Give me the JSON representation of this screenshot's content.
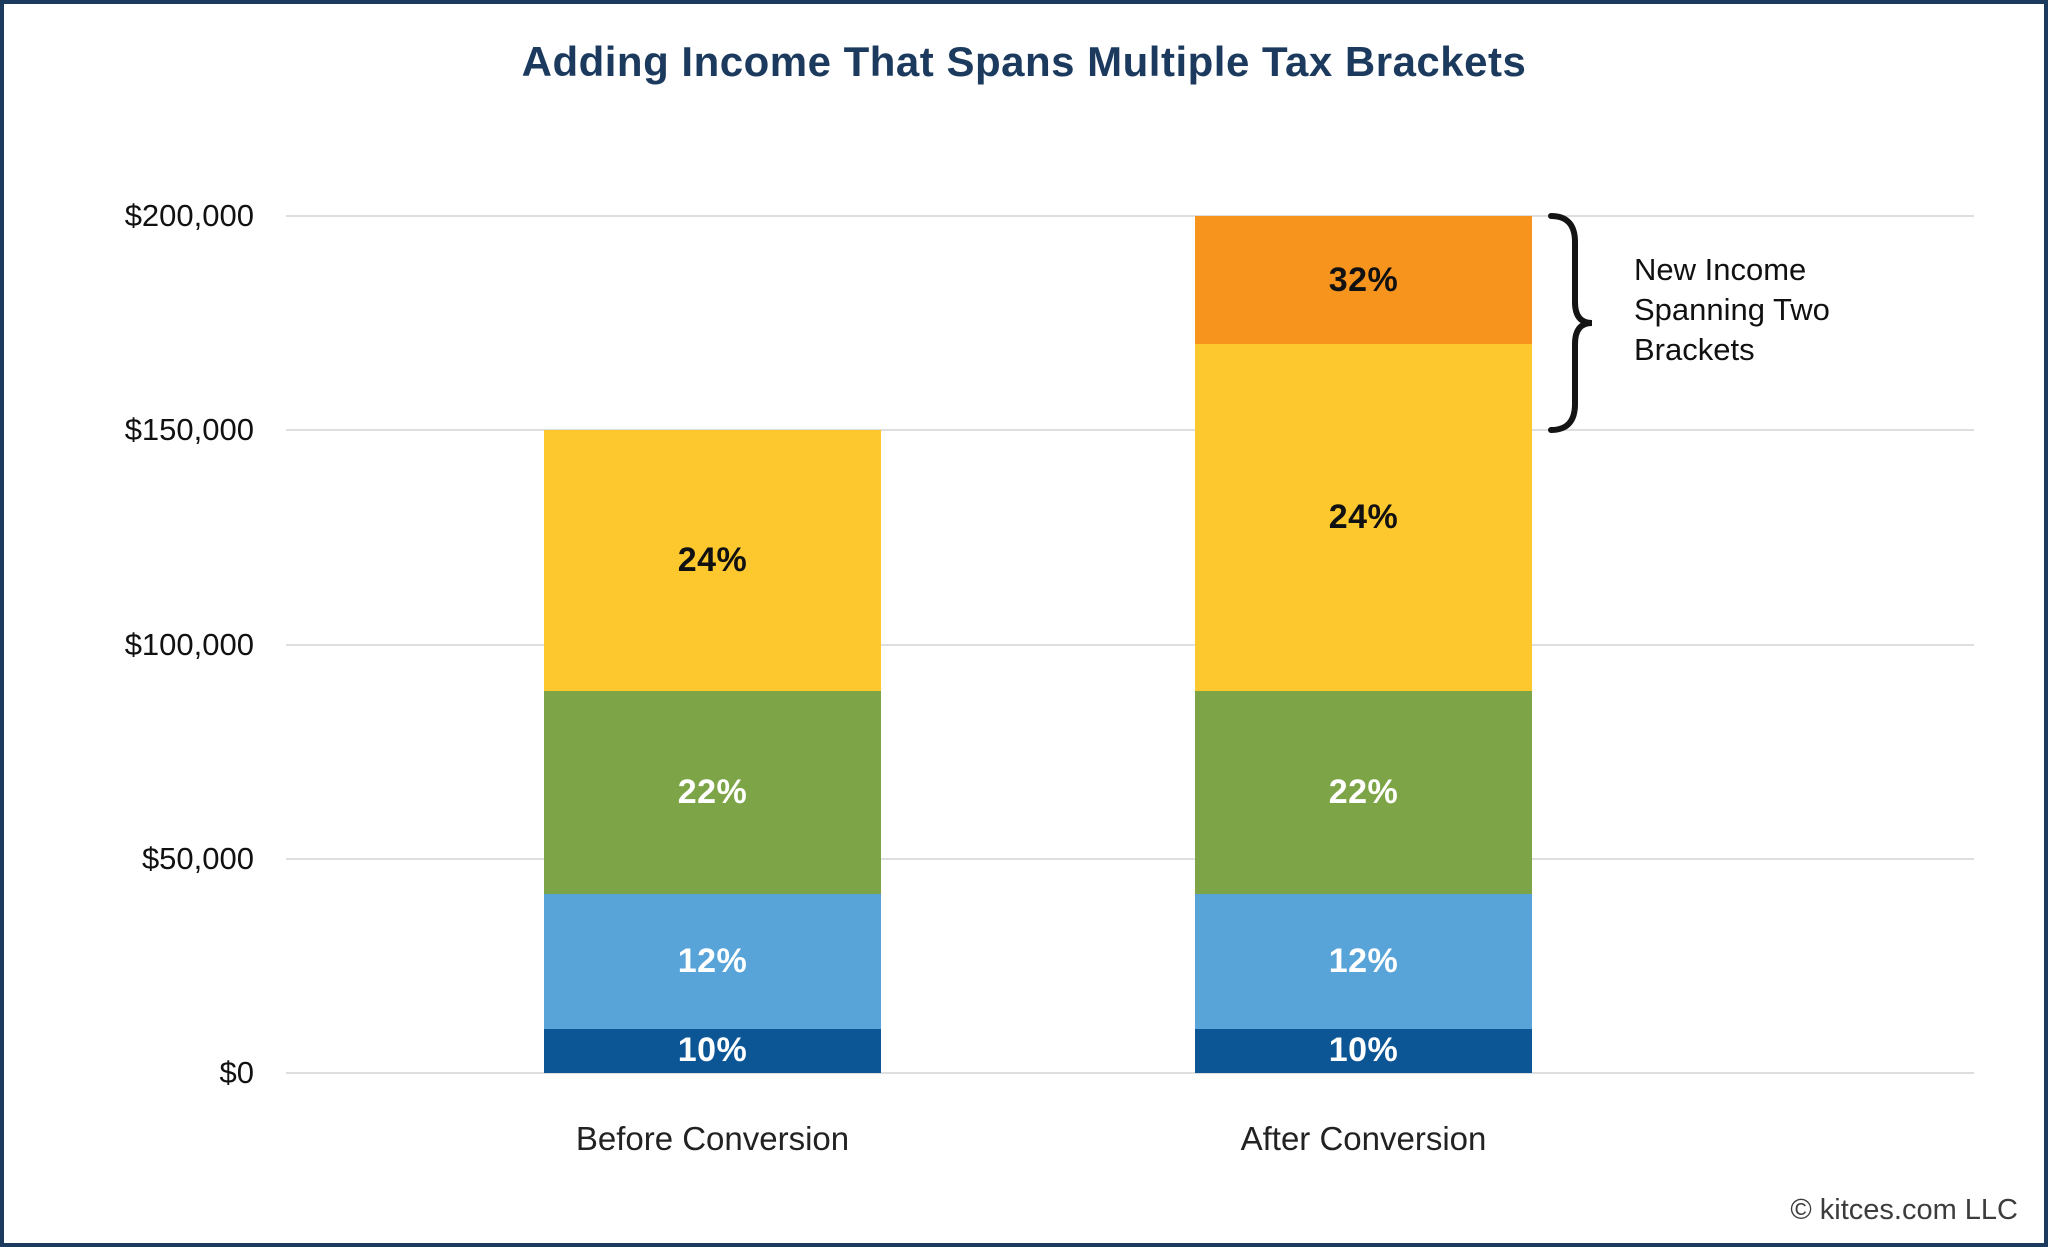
{
  "page": {
    "footer": "© kitces.com LLC"
  },
  "colors": {
    "navy_accent": "#1B3A5E",
    "gridline": "#DEDEDE",
    "annotation_text": "#111111"
  },
  "chart_data": {
    "type": "bar",
    "stacked": true,
    "title": "Adding Income That Spans Multiple Tax Brackets",
    "categories": [
      "Before Conversion",
      "After Conversion"
    ],
    "ylim": [
      0,
      200000
    ],
    "yticks": [
      {
        "value": 0,
        "label": "$0"
      },
      {
        "value": 50000,
        "label": "$50,000"
      },
      {
        "value": 100000,
        "label": "$100,000"
      },
      {
        "value": 150000,
        "label": "$150,000"
      },
      {
        "value": 200000,
        "label": "$200,000"
      }
    ],
    "grid": true,
    "legend": false,
    "series": [
      {
        "name": "10%",
        "color": "#0D5696",
        "label_color": "#FFFFFF",
        "values": [
          10275,
          10275
        ]
      },
      {
        "name": "12%",
        "color": "#58A4D9",
        "label_color": "#FFFFFF",
        "values": [
          31500,
          31500
        ]
      },
      {
        "name": "22%",
        "color": "#7DA547",
        "label_color": "#FFFFFF",
        "values": [
          47300,
          47300
        ]
      },
      {
        "name": "24%",
        "color": "#FDC82E",
        "label_color": "#111111",
        "values": [
          60925,
          80975
        ]
      },
      {
        "name": "32%",
        "color": "#F7941E",
        "label_color": "#111111",
        "values": [
          0,
          29950
        ]
      }
    ],
    "bar_totals": [
      150000,
      200000
    ],
    "annotation": {
      "text_lines": [
        "New Income",
        "Spanning Two",
        "Brackets"
      ],
      "brace_value_range": [
        150000,
        200000
      ],
      "target_category": "After Conversion"
    }
  }
}
